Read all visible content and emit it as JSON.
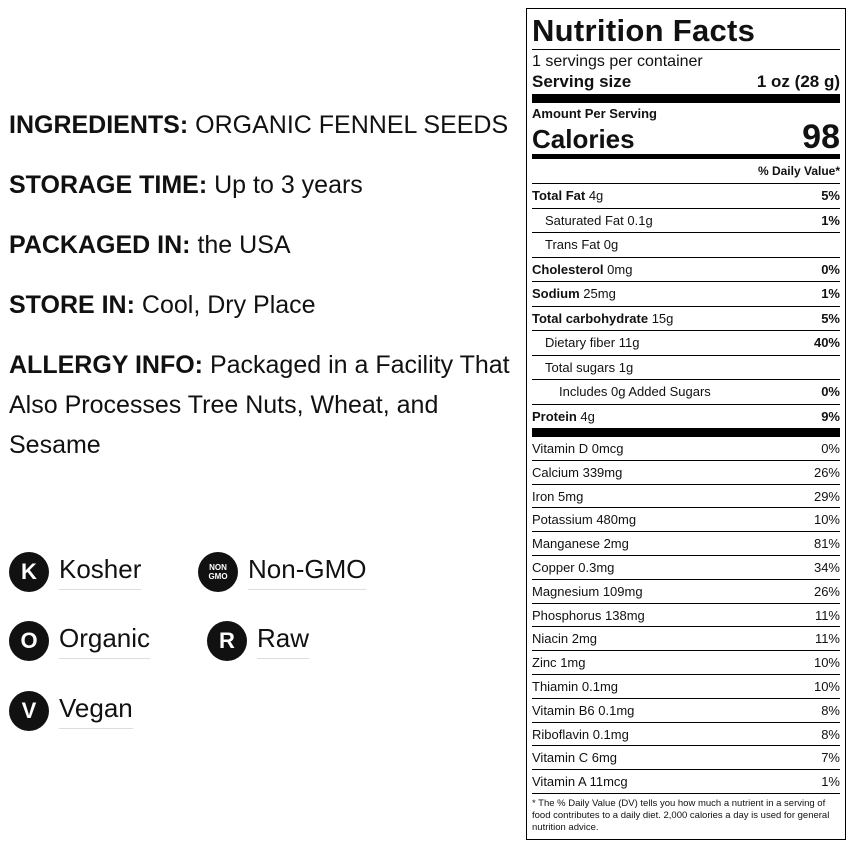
{
  "info": [
    {
      "label": "INGREDIENTS:",
      "text": "ORGANIC FENNEL SEEDS"
    },
    {
      "label": "STORAGE TIME:",
      "text": "Up to 3 years"
    },
    {
      "label": "PACKAGED IN:",
      "text": "the USA"
    },
    {
      "label": "STORE IN:",
      "text": "Cool, Dry Place"
    },
    {
      "label": "ALLERGY INFO:",
      "text": "Packaged in a Facility That Also Processes Tree Nuts, Wheat, and Sesame"
    }
  ],
  "badges": [
    {
      "icon": "K",
      "label": "Kosher"
    },
    {
      "icon": "NON GMO",
      "label": "Non-GMO"
    },
    {
      "icon": "O",
      "label": "Organic"
    },
    {
      "icon": "R",
      "label": "Raw"
    },
    {
      "icon": "V",
      "label": "Vegan"
    }
  ],
  "nutrition": {
    "title": "Nutrition Facts",
    "servings": "1 servings per container",
    "serving_size_label": "Serving size",
    "serving_size_value": "1 oz (28 g)",
    "amount_per_serving": "Amount Per Serving",
    "calories_label": "Calories",
    "calories_value": "98",
    "dv_header": "% Daily Value*",
    "nutrients": [
      {
        "name": "Total Fat",
        "amount": "4g",
        "dv": "5%"
      },
      {
        "name": "Saturated Fat",
        "amount": "0.1g",
        "dv": "1%"
      },
      {
        "name": "Trans Fat",
        "amount": "0g",
        "dv": null
      },
      {
        "name": "Cholesterol",
        "amount": "0mg",
        "dv": "0%"
      },
      {
        "name": "Sodium",
        "amount": "25mg",
        "dv": "1%"
      },
      {
        "name": "Total carbohydrate",
        "amount": "15g",
        "dv": "5%"
      },
      {
        "name": "Dietary fiber",
        "amount": "11g",
        "dv": "40%"
      },
      {
        "name": "Total sugars",
        "amount": "1g",
        "dv": null
      },
      {
        "name": "Includes 0g Added Sugars",
        "amount": null,
        "dv": "0%"
      },
      {
        "name": "Protein",
        "amount": "4g",
        "dv": "9%"
      }
    ],
    "vitamins": [
      {
        "name": "Vitamin D",
        "amount": "0mcg",
        "dv": "0%"
      },
      {
        "name": "Calcium",
        "amount": "339mg",
        "dv": "26%"
      },
      {
        "name": "Iron",
        "amount": "5mg",
        "dv": "29%"
      },
      {
        "name": "Potassium",
        "amount": "480mg",
        "dv": "10%"
      },
      {
        "name": "Manganese",
        "amount": "2mg",
        "dv": "81%"
      },
      {
        "name": "Copper",
        "amount": "0.3mg",
        "dv": "34%"
      },
      {
        "name": "Magnesium",
        "amount": "109mg",
        "dv": "26%"
      },
      {
        "name": "Phosphorus",
        "amount": "138mg",
        "dv": "11%"
      },
      {
        "name": "Niacin",
        "amount": "2mg",
        "dv": "11%"
      },
      {
        "name": "Zinc",
        "amount": "1mg",
        "dv": "10%"
      },
      {
        "name": "Thiamin",
        "amount": "0.1mg",
        "dv": "10%"
      },
      {
        "name": "Vitamin B6",
        "amount": "0.1mg",
        "dv": "8%"
      },
      {
        "name": "Riboflavin",
        "amount": "0.1mg",
        "dv": "8%"
      },
      {
        "name": "Vitamin C",
        "amount": "6mg",
        "dv": "7%"
      },
      {
        "name": "Vitamin A",
        "amount": "11mcg",
        "dv": "1%"
      }
    ],
    "footnote": "* The % Daily Value (DV) tells you how much a nutrient in a serving of food contributes to a daily diet. 2,000 calories a day is used for general nutrition advice."
  }
}
